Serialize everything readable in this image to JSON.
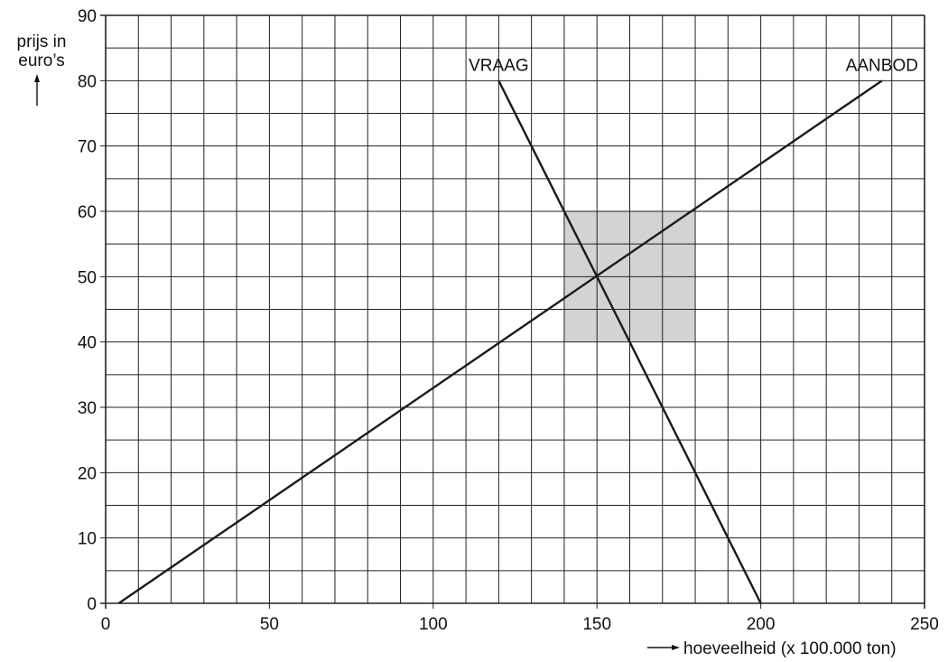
{
  "chart_data": {
    "type": "line",
    "title": "",
    "ylabel_line1": "prijs in",
    "ylabel_line2": "euro’s",
    "xlabel": "hoeveelheid (x 100.000 ton)",
    "xlim": [
      0,
      250
    ],
    "ylim": [
      0,
      90
    ],
    "x_major_ticks": [
      0,
      50,
      100,
      150,
      200,
      250
    ],
    "y_major_ticks": [
      0,
      10,
      20,
      30,
      40,
      50,
      60,
      70,
      80,
      90
    ],
    "grid": {
      "x_step": 10,
      "y_step": 5
    },
    "series": [
      {
        "name": "VRAAG",
        "points": [
          [
            120,
            80
          ],
          [
            200,
            0
          ]
        ]
      },
      {
        "name": "AANBOD",
        "points": [
          [
            4,
            0
          ],
          [
            237,
            80
          ]
        ]
      }
    ],
    "shaded_region": {
      "x": [
        140,
        180
      ],
      "y": [
        40,
        60
      ],
      "color": "#d3d3d3"
    },
    "colors": {
      "line": "#1a1a1a",
      "grid": "#222222",
      "shade": "#d3d3d3"
    }
  }
}
